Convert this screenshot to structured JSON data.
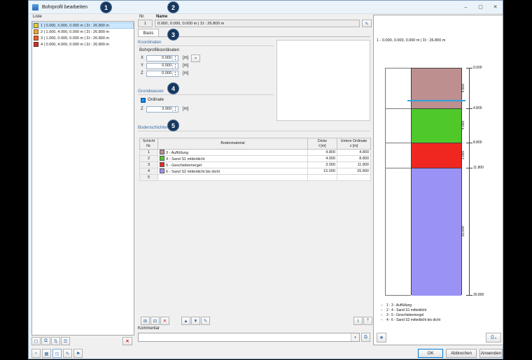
{
  "window": {
    "title": "Bohrprofil bearbeiten"
  },
  "titlebar": {
    "minimize": "–",
    "maximize": "▢",
    "close": "✕"
  },
  "callouts": [
    {
      "label": "1"
    },
    {
      "label": "2"
    },
    {
      "label": "3"
    },
    {
      "label": "4"
    },
    {
      "label": "5"
    }
  ],
  "colors": {
    "badge": "#17375e",
    "section_title": "#3a6ea5",
    "selection": "#cbe8ff",
    "groundwater": "#2ba3dc",
    "accent": "#0078d7"
  },
  "icons": {
    "edit": "✎",
    "pick": "⌖",
    "dropdown": "▾",
    "check": "✓",
    "spin_up": "▲",
    "spin_down": "▼",
    "new": "▢",
    "copy": "⧉",
    "renumber": "⇅",
    "select": "☰",
    "delete": "✕",
    "add_row": "⊞",
    "remove_row": "⊟",
    "clear_rows": "✕",
    "move_up": "▲",
    "move_down": "▼",
    "edit_row": "✎",
    "library_in": "⤓",
    "library_out": "⤒",
    "view_options": "❖",
    "print": "⎙",
    "zoom": "⌕",
    "grid": "▦",
    "panels": "◫",
    "pencil": "✎",
    "flag": "⚑"
  },
  "liste": {
    "label": "Liste",
    "items": [
      {
        "color": "#f0c53a",
        "text": "1 | 0.000, 0.000, 0.000 m | Σt : 26.800 m",
        "selected": true
      },
      {
        "color": "#eca43c",
        "text": "2 | 1.000, 4.000, 0.000 m | Σt : 26.800 m",
        "selected": false
      },
      {
        "color": "#e2622f",
        "text": "3 | 1.000, 0.000, 0.000 m | Σt : 26.800 m",
        "selected": false
      },
      {
        "color": "#c8342a",
        "text": "4 | 0.000, 4.000, 0.000 m | Σt : 26.800 m",
        "selected": false
      }
    ]
  },
  "header": {
    "nr_label": "Nr.",
    "nr_value": "1",
    "name_label": "Name",
    "name_value": "0.000, 0.000, 0.000 m | Σt : 26.800 m"
  },
  "tab": {
    "label": "Basis"
  },
  "koordinaten": {
    "title": "Koordinaten",
    "subtitle": "Bohrprofilkoordinaten",
    "unit": "[m]",
    "rows": [
      {
        "label": "X",
        "value": "0.000"
      },
      {
        "label": "Y",
        "value": "0.000"
      },
      {
        "label": "Z",
        "value": "0.000"
      }
    ]
  },
  "grundwasser": {
    "title": "Grundwasser",
    "checkbox": "Ordinate",
    "checked": true,
    "z_label": "Z",
    "z_value": "3.900",
    "unit": "[m]"
  },
  "bodenschichten": {
    "title": "Bodenschichten",
    "header": {
      "col1": [
        "Schicht",
        "Nr."
      ],
      "col2": [
        "Bodenmaterial",
        ""
      ],
      "col3": [
        "Dicke",
        "t [m]"
      ],
      "col4": [
        "Untere Ordinate",
        "z [m]"
      ]
    },
    "rows": [
      {
        "nr": "1",
        "color": "#bd8f8f",
        "material": "3 - Auffüllung",
        "dicke": "4.800",
        "untere": "4.800"
      },
      {
        "nr": "2",
        "color": "#4fc82a",
        "material": "4 - Sand S1 mitteldicht",
        "dicke": "4.000",
        "untere": "8.800"
      },
      {
        "nr": "3",
        "color": "#f02720",
        "material": "5 - Geschiebemergel",
        "dicke": "3.000",
        "untere": "11.800"
      },
      {
        "nr": "4",
        "color": "#9a93f5",
        "material": "6 - Sand S2 mitteldicht bis dicht",
        "dicke": "15.000",
        "untere": "26.800"
      },
      {
        "nr": "5",
        "color": null,
        "material": "",
        "dicke": "",
        "untere": ""
      }
    ]
  },
  "kommentar": {
    "label": "Kommentar",
    "value": ""
  },
  "preview": {
    "title": "1 - 0.000, 0.000, 0.000 m | Σt : 26.800 m",
    "depth_total_m": 26.8,
    "groundwater_z_m": 3.9,
    "top_label": "0.000",
    "layers": [
      {
        "t_m": 4.8,
        "t_label": "4.800",
        "bottom_label": "4.800",
        "color": "#bd8f8f",
        "name": "3 - Auffüllung"
      },
      {
        "t_m": 4.0,
        "t_label": "4.000",
        "bottom_label": "8.800",
        "color": "#4fc82a",
        "name": "4 - Sand S1 mitteldicht"
      },
      {
        "t_m": 3.0,
        "t_label": "3.000",
        "bottom_label": "11.800",
        "color": "#f02720",
        "name": "5 - Geschiebemergel"
      },
      {
        "t_m": 15.0,
        "t_label": "15.000",
        "bottom_label": "26.800",
        "color": "#9a93f5",
        "name": "6 - Sand S2 mitteldicht bis dicht"
      }
    ],
    "legend": [
      "1 :  3 - Auffüllung",
      "2 :  4 - Sand S1 mitteldicht",
      "3 :  5 - Geschiebemergel",
      "4 :  6 - Sand S2 mitteldicht bis dicht"
    ]
  },
  "footer": {
    "ok": "OK",
    "cancel": "Abbrechen",
    "apply": "Anwenden"
  }
}
